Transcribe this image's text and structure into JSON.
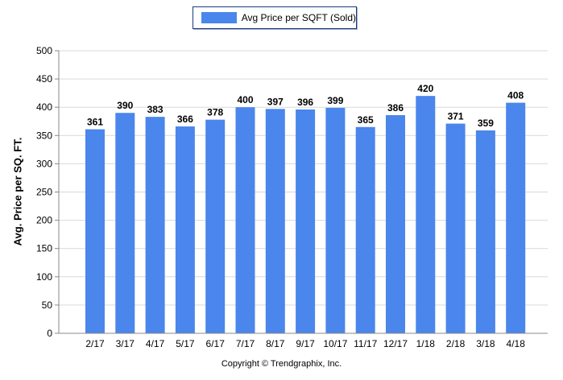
{
  "legend": {
    "label": "Avg Price per SQFT (Sold)"
  },
  "footer": "Copyright © Trendgraphix, Inc.",
  "chart_data": {
    "type": "bar",
    "categories": [
      "2/17",
      "3/17",
      "4/17",
      "5/17",
      "6/17",
      "7/17",
      "8/17",
      "9/17",
      "10/17",
      "11/17",
      "12/17",
      "1/18",
      "2/18",
      "3/18",
      "4/18"
    ],
    "series": [
      {
        "name": "Avg Price per SQFT (Sold)",
        "values": [
          361,
          390,
          383,
          366,
          378,
          400,
          397,
          396,
          399,
          365,
          386,
          420,
          371,
          359,
          408
        ]
      }
    ],
    "title": "",
    "xlabel": "",
    "ylabel": "Avg. Price per SQ. FT.",
    "ylim": [
      0,
      500
    ],
    "yticks": [
      0,
      50,
      100,
      150,
      200,
      250,
      300,
      350,
      400,
      450,
      500
    ],
    "grid": true,
    "legend_position": "top-center",
    "bar_color": "#4a86ec"
  }
}
